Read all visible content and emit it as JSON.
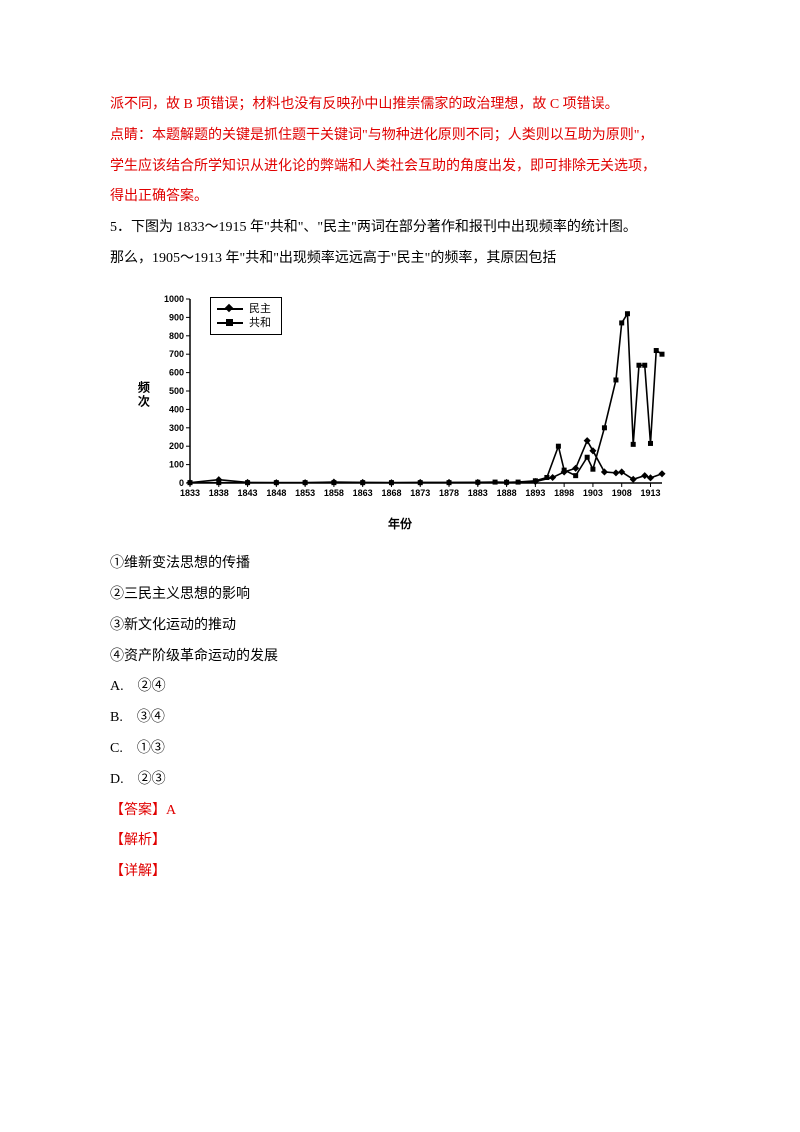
{
  "prev_answer": {
    "line1": "派不同，故 B 项错误；材料也没有反映孙中山推崇儒家的政治理想，故 C 项错误。",
    "line2": "点睛：本题解题的关键是抓住题干关键词\"与物种进化原则不同；人类则以互助为原则\"，",
    "line3": "学生应该结合所学知识从进化论的弊端和人类社会互助的角度出发，即可排除无关选项，",
    "line4": "得出正确答案。"
  },
  "q5": {
    "stem1": "5．下图为 1833～1915 年\"共和\"、\"民主\"两词在部分著作和报刊中出现频率的统计图。",
    "stem2": "那么，1905～1913 年\"共和\"出现频率远远高于\"民主\"的频率，其原因包括",
    "choices": {
      "c1": "①维新变法思想的传播",
      "c2": "②三民主义思想的影响",
      "c3": "③新文化运动的推动",
      "c4": "④资产阶级革命运动的发展"
    },
    "options": {
      "a": "A.　②④",
      "b": "B.　③④",
      "c": "C.　①③",
      "d": "D.　②③"
    },
    "answer_label": "【答案】A",
    "analysis_label": "【解析】",
    "detail_label": "【详解】"
  },
  "chart": {
    "type": "line",
    "background_color": "#ffffff",
    "axis_color": "#000000",
    "series_color": "#000000",
    "font_family": "sans-serif",
    "tick_fontsize": 9,
    "tick_fontweight": "bold",
    "ylabel": "频次",
    "xlabel": "年份",
    "ylim": [
      0,
      1000
    ],
    "ytick_step": 100,
    "xlim": [
      1833,
      1915
    ],
    "xtick_step": 5,
    "legend": {
      "items": [
        {
          "label": "民主",
          "marker": "diamond"
        },
        {
          "label": "共和",
          "marker": "square"
        }
      ]
    },
    "series": [
      {
        "name": "民主",
        "marker": "diamond",
        "points": [
          [
            1833,
            2
          ],
          [
            1838,
            18
          ],
          [
            1843,
            3
          ],
          [
            1848,
            2
          ],
          [
            1853,
            2
          ],
          [
            1858,
            5
          ],
          [
            1863,
            3
          ],
          [
            1868,
            2
          ],
          [
            1873,
            3
          ],
          [
            1878,
            3
          ],
          [
            1883,
            3
          ],
          [
            1888,
            3
          ],
          [
            1893,
            8
          ],
          [
            1896,
            30
          ],
          [
            1898,
            60
          ],
          [
            1900,
            80
          ],
          [
            1902,
            230
          ],
          [
            1903,
            175
          ],
          [
            1905,
            60
          ],
          [
            1907,
            55
          ],
          [
            1908,
            60
          ],
          [
            1910,
            20
          ],
          [
            1912,
            40
          ],
          [
            1913,
            28
          ],
          [
            1915,
            50
          ]
        ]
      },
      {
        "name": "共和",
        "marker": "square",
        "points": [
          [
            1833,
            2
          ],
          [
            1838,
            2
          ],
          [
            1843,
            2
          ],
          [
            1848,
            2
          ],
          [
            1853,
            2
          ],
          [
            1858,
            2
          ],
          [
            1863,
            2
          ],
          [
            1868,
            2
          ],
          [
            1873,
            2
          ],
          [
            1878,
            2
          ],
          [
            1883,
            4
          ],
          [
            1886,
            5
          ],
          [
            1888,
            4
          ],
          [
            1890,
            5
          ],
          [
            1893,
            12
          ],
          [
            1895,
            30
          ],
          [
            1897,
            200
          ],
          [
            1898,
            70
          ],
          [
            1900,
            40
          ],
          [
            1902,
            140
          ],
          [
            1903,
            75
          ],
          [
            1905,
            300
          ],
          [
            1907,
            560
          ],
          [
            1908,
            870
          ],
          [
            1909,
            920
          ],
          [
            1910,
            210
          ],
          [
            1911,
            640
          ],
          [
            1912,
            640
          ],
          [
            1913,
            215
          ],
          [
            1914,
            720
          ],
          [
            1915,
            700
          ]
        ]
      }
    ]
  }
}
